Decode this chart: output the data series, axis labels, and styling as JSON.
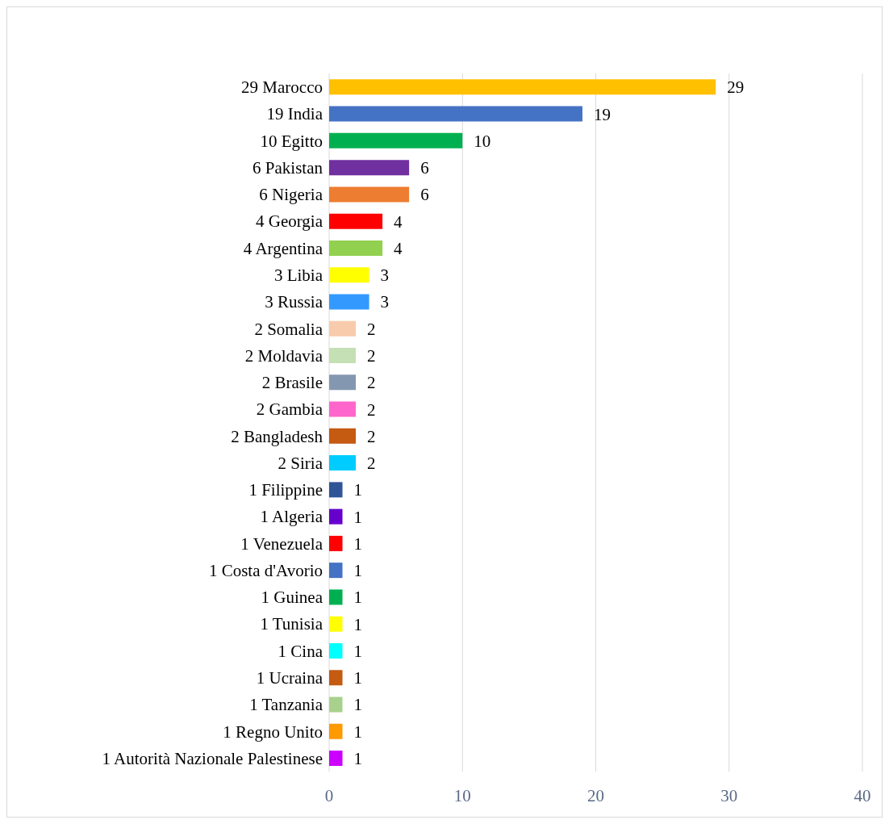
{
  "chart_data": {
    "type": "bar",
    "orientation": "horizontal",
    "categories": [
      "29 Marocco",
      "19 India",
      "10 Egitto",
      "6 Pakistan",
      "6 Nigeria",
      "4 Georgia",
      "4 Argentina",
      "3 Libia",
      "3 Russia",
      "2 Somalia",
      "2 Moldavia",
      "2 Brasile",
      "2 Gambia",
      "2 Bangladesh",
      "2 Siria",
      "1 Filippine",
      "1 Algeria",
      "1 Venezuela",
      "1 Costa d'Avorio",
      "1 Guinea",
      "1 Tunisia",
      "1 Cina",
      "1 Ucraina",
      "1 Tanzania",
      "1 Regno Unito",
      "1 Autorità Nazionale Palestinese"
    ],
    "values": [
      29,
      19,
      10,
      6,
      6,
      4,
      4,
      3,
      3,
      2,
      2,
      2,
      2,
      2,
      2,
      1,
      1,
      1,
      1,
      1,
      1,
      1,
      1,
      1,
      1,
      1
    ],
    "colors": [
      "#ffc000",
      "#4472c4",
      "#00b050",
      "#7030a0",
      "#ed7d31",
      "#ff0000",
      "#92d050",
      "#ffff00",
      "#3399ff",
      "#f8cbad",
      "#c5e0b4",
      "#8497b0",
      "#ff66cc",
      "#c55a11",
      "#00ccff",
      "#2f5597",
      "#6600cc",
      "#ff0000",
      "#4472c4",
      "#00b050",
      "#ffff00",
      "#00ffff",
      "#c55a11",
      "#a9d18e",
      "#ff9900",
      "#cc00ff"
    ],
    "xlim": [
      0,
      40
    ],
    "xticks": [
      0,
      10,
      20,
      30,
      40
    ],
    "grid": "x",
    "data_labels": true
  }
}
